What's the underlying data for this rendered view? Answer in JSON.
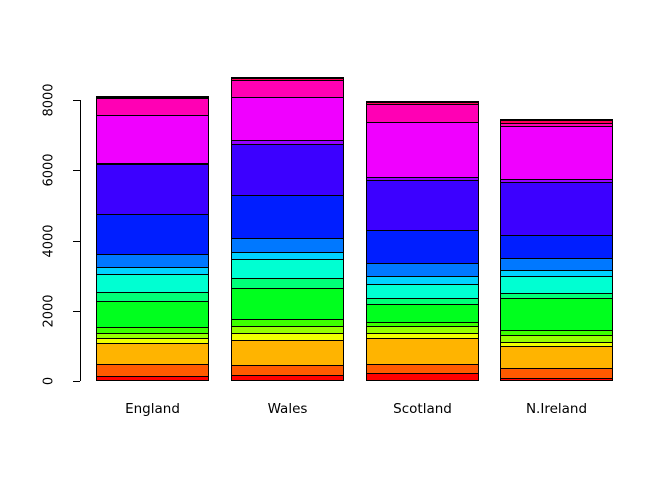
{
  "chart_data": {
    "type": "bar",
    "stacked": true,
    "title": "",
    "xlabel": "",
    "ylabel": "",
    "categories": [
      "England",
      "Wales",
      "Scotland",
      "N.Ireland"
    ],
    "y_ticks": [
      "0",
      "2000",
      "4000",
      "6000",
      "8000"
    ],
    "ylim": [
      0,
      8000
    ],
    "grid": false,
    "legend": "none",
    "background": "#FFFFFF",
    "bar_border_color": "#000000",
    "palette": "rainbow-17",
    "series": [
      {
        "name": "red",
        "color": "#FF0000",
        "values": [
          110,
          130,
          210,
          70
        ]
      },
      {
        "name": "orange-red",
        "color": "#FF5A00",
        "values": [
          340,
          300,
          260,
          260
        ]
      },
      {
        "name": "orange",
        "color": "#FFB400",
        "values": [
          600,
          710,
          730,
          650
        ]
      },
      {
        "name": "yellow",
        "color": "#F0FF00",
        "values": [
          140,
          190,
          140,
          100
        ]
      },
      {
        "name": "chartreuse",
        "color": "#96FF00",
        "values": [
          160,
          200,
          190,
          200
        ]
      },
      {
        "name": "light-green",
        "color": "#3CFF00",
        "values": [
          170,
          215,
          130,
          150
        ]
      },
      {
        "name": "green",
        "color": "#00FF1E",
        "values": [
          740,
          870,
          510,
          910
        ]
      },
      {
        "name": "spring-green",
        "color": "#00FF78",
        "values": [
          240,
          300,
          170,
          130
        ]
      },
      {
        "name": "aquamarine",
        "color": "#00FFD2",
        "values": [
          510,
          530,
          390,
          480
        ]
      },
      {
        "name": "sky-blue",
        "color": "#00D2FF",
        "values": [
          215,
          215,
          220,
          170
        ]
      },
      {
        "name": "azure",
        "color": "#0078FF",
        "values": [
          370,
          390,
          370,
          365
        ]
      },
      {
        "name": "blue",
        "color": "#001EFF",
        "values": [
          1125,
          1215,
          950,
          650
        ]
      },
      {
        "name": "blue-violet",
        "color": "#3C00FF",
        "values": [
          1425,
          1470,
          1430,
          1500
        ]
      },
      {
        "name": "violet",
        "color": "#9600FF",
        "values": [
          45,
          90,
          80,
          85
        ]
      },
      {
        "name": "magenta",
        "color": "#F000FF",
        "values": [
          1370,
          1230,
          1560,
          1510
        ]
      },
      {
        "name": "pink",
        "color": "#FF00B4",
        "values": [
          470,
          490,
          530,
          105
        ]
      },
      {
        "name": "rose",
        "color": "#FF005A",
        "values": [
          45,
          60,
          55,
          60
        ]
      }
    ],
    "totals": [
      8075,
      8605,
      7925,
      7395
    ]
  }
}
